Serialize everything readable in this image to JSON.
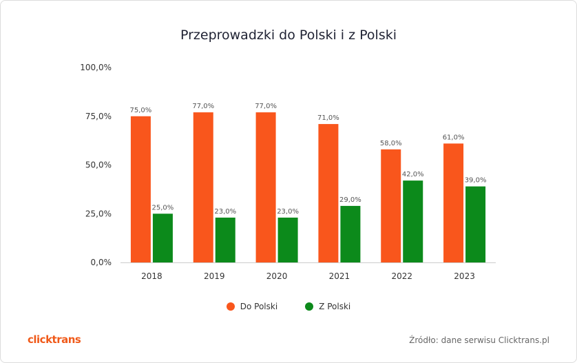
{
  "chart_data": {
    "type": "bar",
    "title": "Przeprowadzki do Polski i z Polski",
    "categories": [
      "2018",
      "2019",
      "2020",
      "2021",
      "2022",
      "2023"
    ],
    "series": [
      {
        "name": "Do Polski",
        "color": "#f9561c",
        "values": [
          75.0,
          77.0,
          77.0,
          71.0,
          58.0,
          61.0
        ],
        "labels": [
          "75,0%",
          "77,0%",
          "77,0%",
          "71,0%",
          "58,0%",
          "61,0%"
        ]
      },
      {
        "name": "Z Polski",
        "color": "#0c8a1b",
        "values": [
          25.0,
          23.0,
          23.0,
          29.0,
          42.0,
          39.0
        ],
        "labels": [
          "25,0%",
          "23,0%",
          "23,0%",
          "29,0%",
          "42,0%",
          "39,0%"
        ]
      }
    ],
    "yticks": [
      0,
      25,
      50,
      75,
      100
    ],
    "ytick_labels": [
      "0,0%",
      "25,0%",
      "50,0%",
      "75,0%",
      "100,0%"
    ],
    "ylim": [
      0,
      100
    ],
    "grid": false,
    "legend_position": "bottom"
  },
  "footer": {
    "logo": "clicktrans",
    "source": "Źródło: dane serwisu Clicktrans.pl"
  }
}
